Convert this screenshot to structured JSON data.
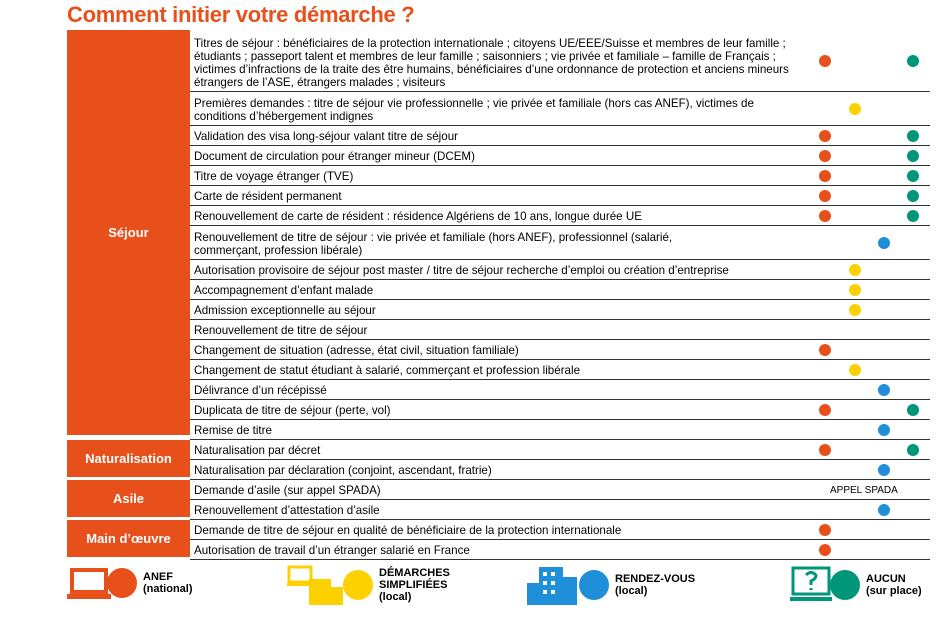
{
  "title": "Comment initier votre démarche ?",
  "sections": [
    {
      "name": "Séjour",
      "rows": [
        {
          "text": "Titres de séjour : bénéficiaires de la protection internationale ; citoyens UE/EEE/Suisse et membres de leur famille ; étudiants ; passeport talent et membres de leur famille ; saisonniers ; vie privée et familiale – famille de Français ; victimes d’infractions de la traite des être humains, bénéficiaires d’une ordonnance de protection et anciens mineurs étrangers de l’ASE, étrangers malades ; visiteurs"
        },
        {
          "text": "Premières demandes : titre de séjour vie professionnelle ; vie privée et familiale (hors cas ANEF), victimes de conditions d’hébergement indignes"
        },
        {
          "text": "Validation des visa long-séjour valant titre de séjour"
        },
        {
          "text": "Document de circulation pour étranger mineur (DCEM)"
        },
        {
          "text": "Titre de voyage étranger (TVE)"
        },
        {
          "text": "Carte de résident permanent"
        },
        {
          "text": "Renouvellement de carte de résident : résidence Algériens de 10 ans, longue durée UE"
        },
        {
          "text": "Renouvellement de titre de séjour : vie privée et familiale (hors ANEF), professionnel (salarié, commerçant, profession libérale)"
        },
        {
          "text": "Autorisation provisoire de séjour post master / titre de séjour recherche d’emploi ou création d’entreprise"
        },
        {
          "text": "Accompagnement d’enfant malade"
        },
        {
          "text": "Admission exceptionnelle au séjour"
        },
        {
          "text": "Renouvellement de titre de séjour"
        },
        {
          "text": "Changement de situation (adresse, état civil, situation familiale)"
        },
        {
          "text": "Changement de statut étudiant à salarié, commerçant et profession libérale"
        },
        {
          "text": "Délivrance d’un récépissé"
        },
        {
          "text": "Duplicata de titre de séjour (perte, vol)"
        },
        {
          "text": "Remise de titre"
        }
      ]
    },
    {
      "name": "Naturalisation",
      "rows": [
        {
          "text": "Naturalisation par décret"
        },
        {
          "text": "Naturalisation par déclaration (conjoint, ascendant, fratrie)"
        }
      ]
    },
    {
      "name": "Asile",
      "rows": [
        {
          "text": "Demande d’asile (sur appel SPADA)",
          "note": "APPEL SPADA"
        },
        {
          "text": "Renouvellement d’attestation d’asile"
        }
      ]
    },
    {
      "name": "Main d’œuvre",
      "rows": [
        {
          "text": "Demande de titre de séjour en qualité de bénéficiaire de la protection internationale"
        },
        {
          "text": "Autorisation de travail d’un étranger salarié en France"
        }
      ]
    }
  ],
  "legend": [
    {
      "label": "ANEF",
      "sublabel": "(national)"
    },
    {
      "label": "DÉMARCHES SIMPLIFIÉES",
      "sublabel": "(local)"
    },
    {
      "label": "RENDEZ-VOUS",
      "sublabel": "(local)"
    },
    {
      "label": "AUCUN",
      "sublabel": "(sur place)"
    }
  ]
}
